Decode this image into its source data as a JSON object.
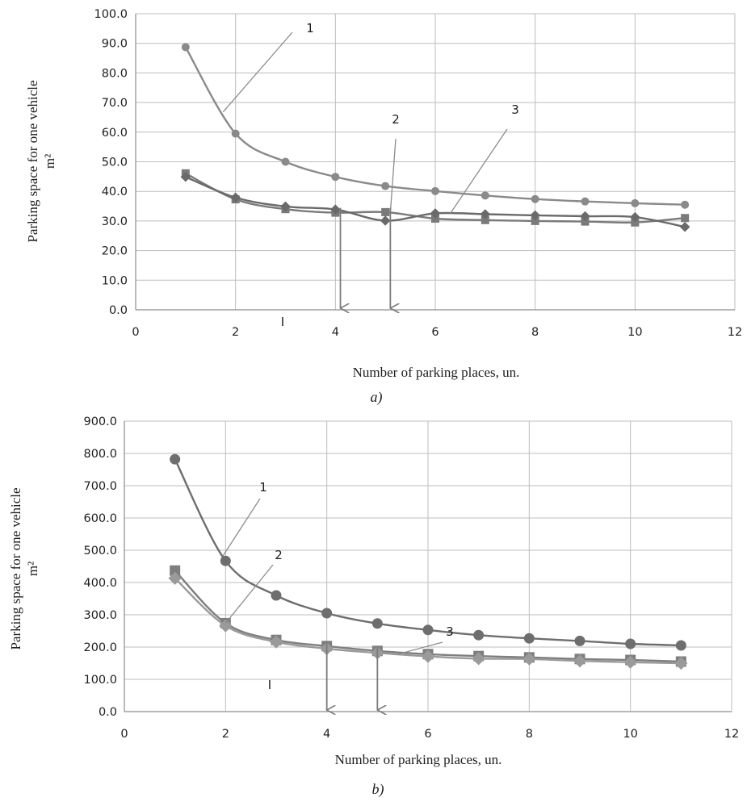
{
  "charts": [
    {
      "caption": "a)",
      "marker_text": "I",
      "annotations": [
        {
          "label": "1",
          "target_series": 0,
          "target_x": 1.75
        },
        {
          "label": "2",
          "target_series": 1,
          "target_x": 5.1
        },
        {
          "label": "3",
          "target_series": 2,
          "target_x": 6.3
        }
      ],
      "arrows_at_x": [
        4.1,
        5.1
      ]
    },
    {
      "caption": "b)",
      "marker_text": "I",
      "annotations": [
        {
          "label": "1",
          "target_series": 0,
          "target_x": 1.95
        },
        {
          "label": "2",
          "target_series": 1,
          "target_x": 2.0
        },
        {
          "label": "3",
          "target_series": 2,
          "target_x": 5.4
        }
      ],
      "arrows_at_x": [
        4.0,
        5.0
      ]
    }
  ],
  "chart_data": [
    {
      "type": "line",
      "xlabel": "Number of parking places, un.",
      "ylabel": "Parking space for one vehicle",
      "ylabel_unit": "m²",
      "xlim": [
        0,
        12
      ],
      "ylim": [
        0,
        100
      ],
      "x_ticks": [
        "0",
        "2",
        "4",
        "6",
        "8",
        "10",
        "12"
      ],
      "y_ticks": [
        "0.0",
        "10.0",
        "20.0",
        "30.0",
        "40.0",
        "50.0",
        "60.0",
        "70.0",
        "80.0",
        "90.0",
        "100.0"
      ],
      "grid": true,
      "x": [
        1,
        2,
        3,
        4,
        5,
        6,
        7,
        8,
        9,
        10,
        11
      ],
      "series": [
        {
          "marker": "circle",
          "values": [
            88.7,
            59.5,
            50.0,
            44.9,
            41.8,
            40.1,
            38.6,
            37.4,
            36.6,
            36.0,
            35.5
          ]
        },
        {
          "marker": "square",
          "values": [
            46.1,
            37.3,
            34.0,
            32.8,
            33.0,
            30.8,
            30.3,
            30.0,
            29.8,
            29.5,
            31.0
          ]
        },
        {
          "marker": "diamond",
          "values": [
            44.9,
            37.9,
            34.9,
            33.9,
            30.1,
            32.6,
            32.3,
            31.9,
            31.6,
            31.3,
            28.0
          ]
        }
      ],
      "colors": {
        "series_1": "#8a8a8a",
        "series_2": "#7a7a7a",
        "series_3": "#6a6a6a",
        "grid": "#bdbdbd"
      }
    },
    {
      "type": "line",
      "xlabel": "Number of parking places, un.",
      "ylabel": "Parking space for one vehicle",
      "ylabel_unit": "m²",
      "xlim": [
        0,
        12
      ],
      "ylim": [
        0,
        900
      ],
      "x_ticks": [
        "0",
        "2",
        "4",
        "6",
        "8",
        "10",
        "12"
      ],
      "y_ticks": [
        "0.0",
        "100.0",
        "200.0",
        "300.0",
        "400.0",
        "500.0",
        "600.0",
        "700.0",
        "800.0",
        "900.0"
      ],
      "grid": true,
      "x": [
        1,
        2,
        3,
        4,
        5,
        6,
        7,
        8,
        9,
        10,
        11
      ],
      "series": [
        {
          "marker": "circle",
          "values": [
            782,
            467,
            360,
            305,
            273,
            253,
            237,
            227,
            219,
            210,
            205
          ]
        },
        {
          "marker": "square",
          "values": [
            437,
            274,
            222,
            203,
            188,
            178,
            172,
            168,
            163,
            160,
            155
          ]
        },
        {
          "marker": "diamond",
          "values": [
            413,
            266,
            216,
            195,
            182,
            171,
            164,
            163,
            157,
            153,
            150
          ]
        }
      ],
      "colors": {
        "series_1": "#6e6e6e",
        "series_2": "#7e7e7e",
        "series_3": "#9a9a9a",
        "grid": "#bdbdbd"
      }
    }
  ]
}
